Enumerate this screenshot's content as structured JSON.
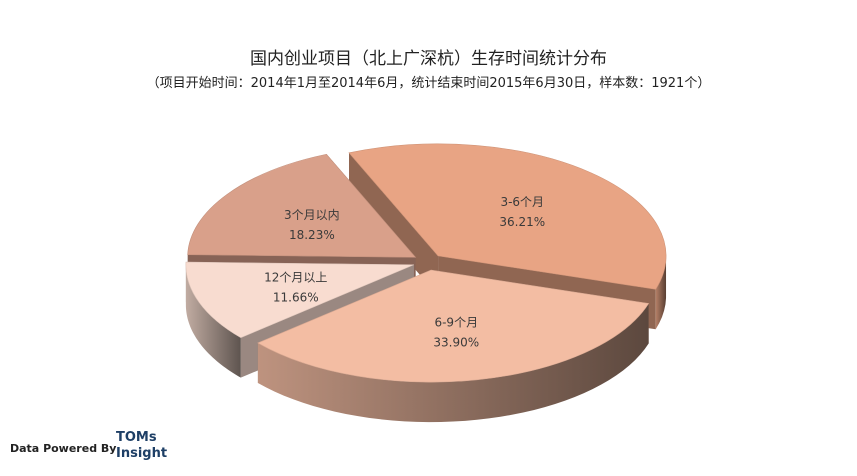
{
  "chart_data": {
    "type": "pie",
    "title": "国内创业项目（北上广深杭）生存时间统计分布",
    "subtitle": "（项目开始时间：2014年1月至2014年6月，统计结束时间2015年6月30日，样本数：1921个）",
    "slices": [
      {
        "label": "3-6个月",
        "value": 36.21,
        "display": "36.21%",
        "color": "#e8a484"
      },
      {
        "label": "6-9个月",
        "value": 33.9,
        "display": "33.90%",
        "color": "#f3bda3"
      },
      {
        "label": "12个月以上",
        "value": 11.66,
        "display": "11.66%",
        "color": "#f8dcd0"
      },
      {
        "label": "3个月以内",
        "value": 18.23,
        "display": "18.23%",
        "color": "#d9a08a"
      }
    ]
  },
  "footer": {
    "powered_by": "Data Powered By",
    "brand_line1": "TOMs",
    "brand_line2": "Insight"
  }
}
